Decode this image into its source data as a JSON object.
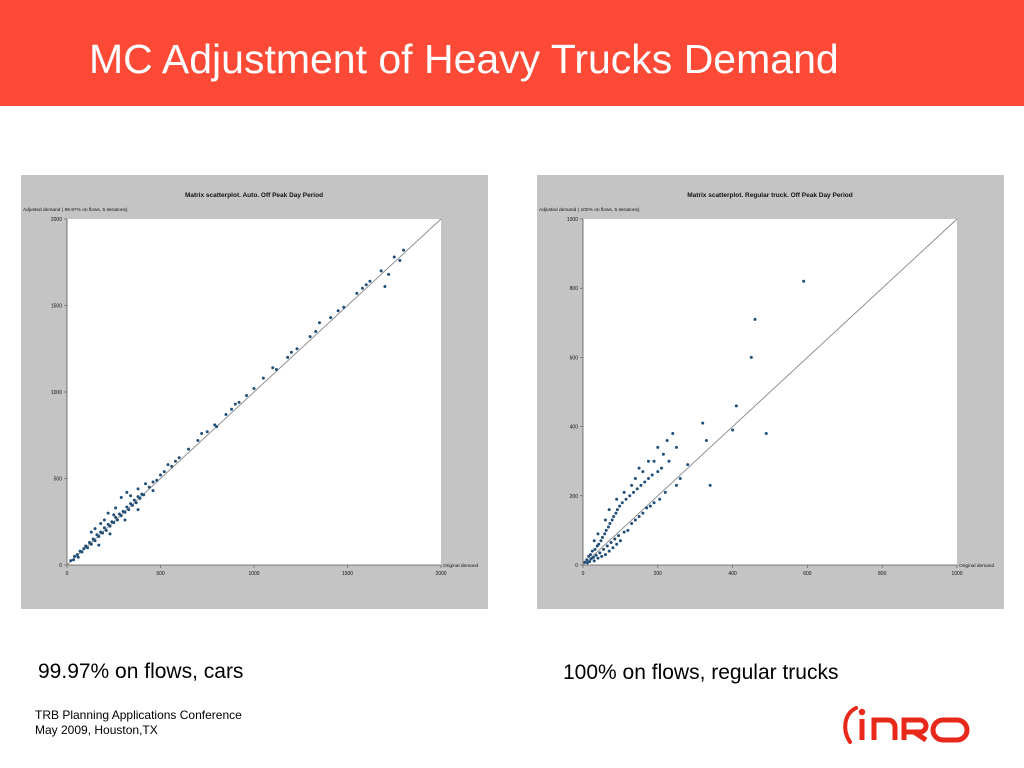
{
  "slide": {
    "title": "MC Adjustment of Heavy Trucks Demand",
    "caption_left": "99.97% on flows, cars",
    "caption_right": "100% on flows, regular trucks",
    "footer_line1": "TRB Planning Applications Conference",
    "footer_line2": "May 2009, Houston,TX",
    "logo_text": "iNRO"
  },
  "colors": {
    "title_bar": "#fc4a36",
    "panel_bg": "#c4c4c4",
    "point": "#1f4e79",
    "logo": "#e8281a"
  },
  "chart_data": [
    {
      "type": "scatter",
      "title": "Matrix scatterplot. Auto. Off Peak Day Period",
      "ylabel": "Adjusted demand ( 99.97% on flows, 5 iterations)",
      "xlabel": "Original demand",
      "xlim": [
        0,
        2000
      ],
      "ylim": [
        0,
        2000
      ],
      "xticks": [
        0,
        500,
        1000,
        1500,
        2000
      ],
      "yticks": [
        0,
        500,
        1000,
        1500,
        2000
      ],
      "reference_line": "y = x",
      "points": [
        [
          20,
          25
        ],
        [
          35,
          30
        ],
        [
          40,
          50
        ],
        [
          55,
          60
        ],
        [
          60,
          45
        ],
        [
          70,
          80
        ],
        [
          80,
          75
        ],
        [
          90,
          95
        ],
        [
          100,
          110
        ],
        [
          110,
          100
        ],
        [
          120,
          130
        ],
        [
          130,
          120
        ],
        [
          140,
          150
        ],
        [
          150,
          140
        ],
        [
          160,
          175
        ],
        [
          170,
          165
        ],
        [
          180,
          190
        ],
        [
          190,
          185
        ],
        [
          200,
          215
        ],
        [
          210,
          200
        ],
        [
          220,
          235
        ],
        [
          230,
          225
        ],
        [
          240,
          250
        ],
        [
          250,
          245
        ],
        [
          260,
          275
        ],
        [
          270,
          260
        ],
        [
          280,
          295
        ],
        [
          290,
          285
        ],
        [
          300,
          310
        ],
        [
          310,
          305
        ],
        [
          320,
          335
        ],
        [
          330,
          320
        ],
        [
          340,
          355
        ],
        [
          350,
          345
        ],
        [
          360,
          375
        ],
        [
          370,
          360
        ],
        [
          380,
          395
        ],
        [
          390,
          385
        ],
        [
          400,
          410
        ],
        [
          410,
          405
        ],
        [
          130,
          190
        ],
        [
          150,
          210
        ],
        [
          180,
          240
        ],
        [
          200,
          260
        ],
        [
          220,
          300
        ],
        [
          260,
          330
        ],
        [
          290,
          390
        ],
        [
          320,
          420
        ],
        [
          340,
          400
        ],
        [
          380,
          440
        ],
        [
          420,
          470
        ],
        [
          440,
          450
        ],
        [
          460,
          480
        ],
        [
          480,
          490
        ],
        [
          500,
          520
        ],
        [
          520,
          540
        ],
        [
          540,
          580
        ],
        [
          560,
          570
        ],
        [
          580,
          600
        ],
        [
          600,
          620
        ],
        [
          650,
          670
        ],
        [
          700,
          720
        ],
        [
          720,
          760
        ],
        [
          750,
          770
        ],
        [
          790,
          810
        ],
        [
          800,
          800
        ],
        [
          850,
          870
        ],
        [
          880,
          900
        ],
        [
          900,
          930
        ],
        [
          920,
          940
        ],
        [
          960,
          980
        ],
        [
          1000,
          1020
        ],
        [
          1050,
          1080
        ],
        [
          1100,
          1140
        ],
        [
          1120,
          1130
        ],
        [
          1180,
          1200
        ],
        [
          1200,
          1230
        ],
        [
          1230,
          1250
        ],
        [
          1300,
          1320
        ],
        [
          1330,
          1350
        ],
        [
          1350,
          1400
        ],
        [
          1410,
          1430
        ],
        [
          1450,
          1470
        ],
        [
          1480,
          1490
        ],
        [
          1550,
          1570
        ],
        [
          1580,
          1600
        ],
        [
          1620,
          1640
        ],
        [
          1680,
          1700
        ],
        [
          1720,
          1680
        ],
        [
          1750,
          1780
        ],
        [
          1780,
          1760
        ],
        [
          1800,
          1820
        ],
        [
          1600,
          1620
        ],
        [
          1700,
          1610
        ],
        [
          170,
          115
        ],
        [
          230,
          180
        ],
        [
          310,
          260
        ],
        [
          460,
          430
        ],
        [
          250,
          290
        ],
        [
          380,
          320
        ]
      ]
    },
    {
      "type": "scatter",
      "title": "Matrix scatterplot. Regular truck. Off Peak Day Period",
      "ylabel": "Adjusted demand ( 100% on flows, 5 iterations)",
      "xlabel": "Original demand",
      "xlim": [
        0,
        1000
      ],
      "ylim": [
        0,
        1000
      ],
      "xticks": [
        0,
        200,
        400,
        600,
        800,
        1000
      ],
      "yticks": [
        0,
        200,
        400,
        600,
        800,
        1000
      ],
      "reference_line": "y = x",
      "points": [
        [
          5,
          8
        ],
        [
          10,
          15
        ],
        [
          12,
          6
        ],
        [
          15,
          25
        ],
        [
          18,
          10
        ],
        [
          20,
          30
        ],
        [
          22,
          18
        ],
        [
          25,
          40
        ],
        [
          28,
          22
        ],
        [
          30,
          12
        ],
        [
          32,
          45
        ],
        [
          35,
          28
        ],
        [
          38,
          55
        ],
        [
          40,
          20
        ],
        [
          42,
          60
        ],
        [
          45,
          35
        ],
        [
          48,
          70
        ],
        [
          50,
          25
        ],
        [
          52,
          80
        ],
        [
          55,
          45
        ],
        [
          58,
          90
        ],
        [
          60,
          30
        ],
        [
          62,
          100
        ],
        [
          65,
          55
        ],
        [
          68,
          110
        ],
        [
          70,
          40
        ],
        [
          72,
          120
        ],
        [
          75,
          65
        ],
        [
          78,
          130
        ],
        [
          80,
          50
        ],
        [
          82,
          140
        ],
        [
          85,
          75
        ],
        [
          88,
          150
        ],
        [
          90,
          60
        ],
        [
          92,
          160
        ],
        [
          95,
          85
        ],
        [
          98,
          170
        ],
        [
          100,
          70
        ],
        [
          105,
          180
        ],
        [
          110,
          95
        ],
        [
          115,
          190
        ],
        [
          120,
          100
        ],
        [
          125,
          200
        ],
        [
          130,
          120
        ],
        [
          135,
          210
        ],
        [
          140,
          130
        ],
        [
          145,
          220
        ],
        [
          150,
          140
        ],
        [
          155,
          230
        ],
        [
          160,
          150
        ],
        [
          165,
          240
        ],
        [
          170,
          165
        ],
        [
          175,
          250
        ],
        [
          180,
          170
        ],
        [
          185,
          260
        ],
        [
          190,
          180
        ],
        [
          200,
          270
        ],
        [
          205,
          190
        ],
        [
          210,
          280
        ],
        [
          220,
          210
        ],
        [
          230,
          300
        ],
        [
          240,
          380
        ],
        [
          250,
          230
        ],
        [
          260,
          250
        ],
        [
          280,
          290
        ],
        [
          320,
          410
        ],
        [
          330,
          360
        ],
        [
          340,
          230
        ],
        [
          400,
          390
        ],
        [
          410,
          460
        ],
        [
          450,
          600
        ],
        [
          460,
          710
        ],
        [
          490,
          380
        ],
        [
          590,
          820
        ],
        [
          130,
          230
        ],
        [
          150,
          280
        ],
        [
          175,
          300
        ],
        [
          200,
          340
        ],
        [
          225,
          360
        ],
        [
          250,
          340
        ],
        [
          30,
          70
        ],
        [
          40,
          90
        ],
        [
          60,
          130
        ],
        [
          70,
          160
        ],
        [
          90,
          190
        ],
        [
          110,
          210
        ],
        [
          140,
          250
        ],
        [
          160,
          270
        ],
        [
          190,
          300
        ],
        [
          215,
          320
        ]
      ]
    }
  ]
}
